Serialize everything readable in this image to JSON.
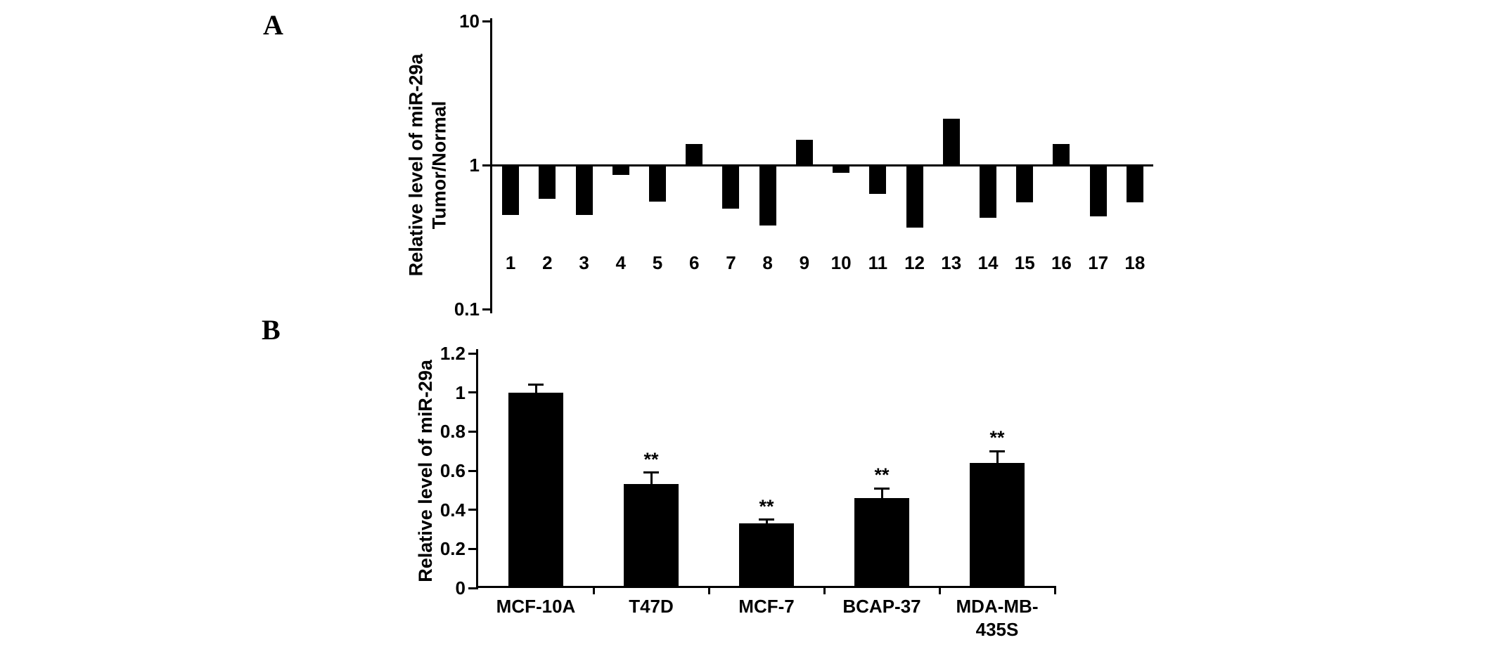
{
  "panels": {
    "a": {
      "label": "A"
    },
    "b": {
      "label": "B"
    }
  },
  "chart_data": [
    {
      "panel": "A",
      "type": "bar",
      "ylabel_lines": [
        "Relative level of miR-29a",
        "Tumor/Normal"
      ],
      "xlabel": "",
      "y_scale": "log10",
      "ylim": [
        0.1,
        10
      ],
      "y_ticks": [
        "10",
        "1",
        "0.1"
      ],
      "baseline": 1,
      "categories": [
        "1",
        "2",
        "3",
        "4",
        "5",
        "6",
        "7",
        "8",
        "9",
        "10",
        "11",
        "12",
        "13",
        "14",
        "15",
        "16",
        "17",
        "18"
      ],
      "values": [
        0.45,
        0.58,
        0.45,
        0.85,
        0.56,
        1.4,
        0.5,
        0.38,
        1.5,
        0.88,
        0.63,
        0.37,
        2.1,
        0.43,
        0.55,
        1.4,
        0.44,
        0.55
      ],
      "bar_color": "#000000",
      "grid": false,
      "legend": "none"
    },
    {
      "panel": "B",
      "type": "bar",
      "ylabel_lines": [
        "Relative level of miR-29a"
      ],
      "xlabel": "",
      "y_scale": "linear",
      "ylim": [
        0,
        1.2
      ],
      "y_ticks": [
        "0",
        "0.2",
        "0.4",
        "0.6",
        "0.8",
        "1",
        "1.2"
      ],
      "categories": [
        "MCF-10A",
        "T47D",
        "MCF-7",
        "BCAP-37",
        "MDA-MB-435S"
      ],
      "values": [
        1.0,
        0.53,
        0.33,
        0.46,
        0.64
      ],
      "errors": [
        0.04,
        0.06,
        0.02,
        0.05,
        0.06
      ],
      "annotations": [
        "",
        "**",
        "**",
        "**",
        "**"
      ],
      "bar_color": "#000000",
      "grid": false,
      "legend": "none"
    }
  ]
}
